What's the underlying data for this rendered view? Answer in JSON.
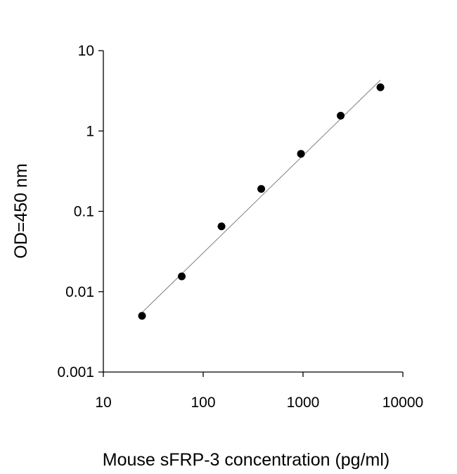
{
  "chart_data": {
    "type": "scatter",
    "title": "",
    "xlabel": "Mouse sFRP-3 concentration (pg/ml)",
    "ylabel": "OD=450 nm",
    "x_scale": "log",
    "y_scale": "log",
    "xlim": [
      10,
      10000
    ],
    "ylim": [
      0.001,
      10
    ],
    "x_tick_labels": [
      "10",
      "100",
      "1000",
      "10000"
    ],
    "y_tick_labels": [
      "0.001",
      "0.01",
      "0.1",
      "1",
      "10"
    ],
    "grid": false,
    "legend": "none",
    "series": [
      {
        "x": [
          24.4,
          61,
          152.6,
          381.5,
          953.7,
          2384,
          5960
        ],
        "y": [
          0.005,
          0.0155,
          0.065,
          0.19,
          0.52,
          1.55,
          3.5
        ]
      }
    ],
    "trendline": {
      "x": [
        24.4,
        5960
      ],
      "y": [
        0.0055,
        4.3
      ]
    },
    "colors": {
      "points": "#000000",
      "trendline": "#808080",
      "axis": "#000000"
    }
  }
}
